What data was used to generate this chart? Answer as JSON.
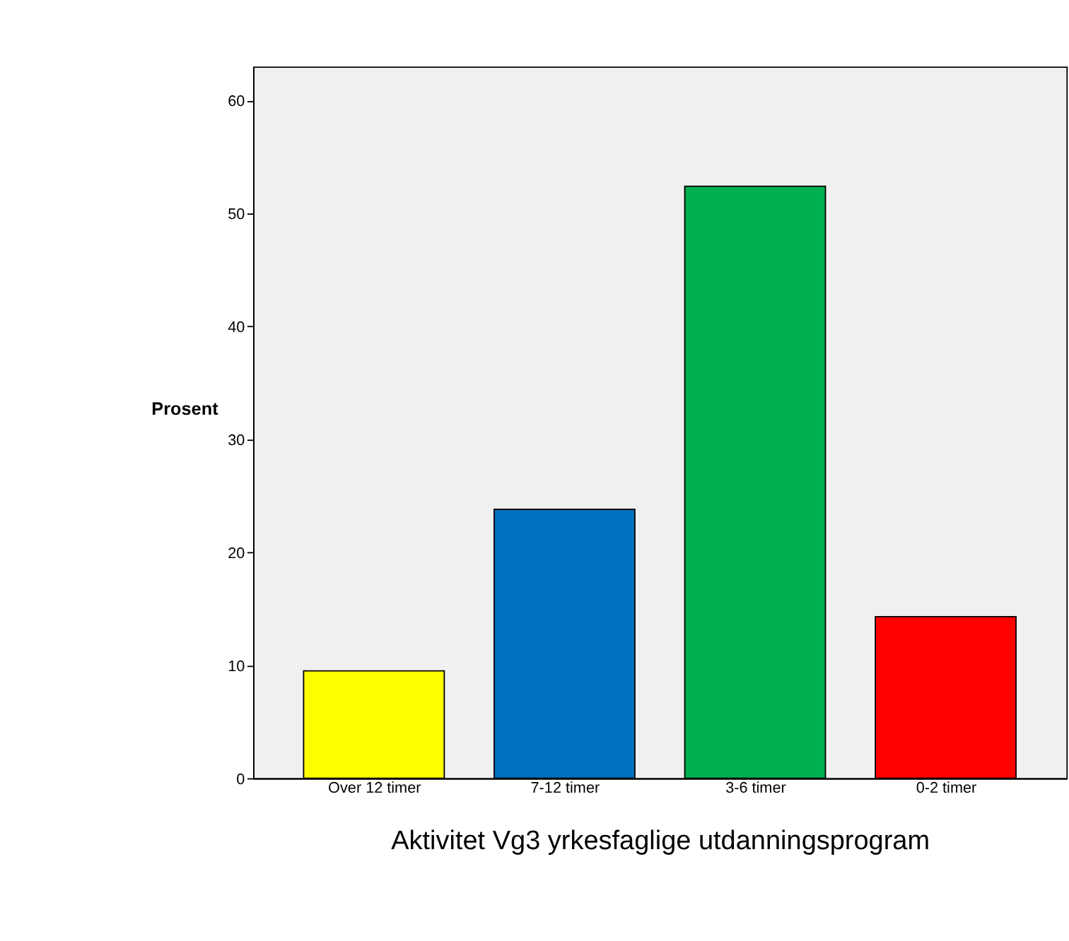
{
  "chart_data": {
    "type": "bar",
    "xlabel": "Aktivitet Vg3 yrkesfaglige utdanningsprogram",
    "ylabel": "Prosent",
    "categories": [
      "Over 12 timer",
      "7-12 timer",
      "3-6 timer",
      "0-2 timer"
    ],
    "values": [
      9.5,
      23.8,
      52.4,
      14.3
    ],
    "colors": [
      "#ffff00",
      "#0070c0",
      "#00b050",
      "#ff0000"
    ],
    "ylim": [
      0,
      63
    ],
    "yticks": [
      0,
      10,
      20,
      30,
      40,
      50,
      60
    ],
    "grid": false
  }
}
